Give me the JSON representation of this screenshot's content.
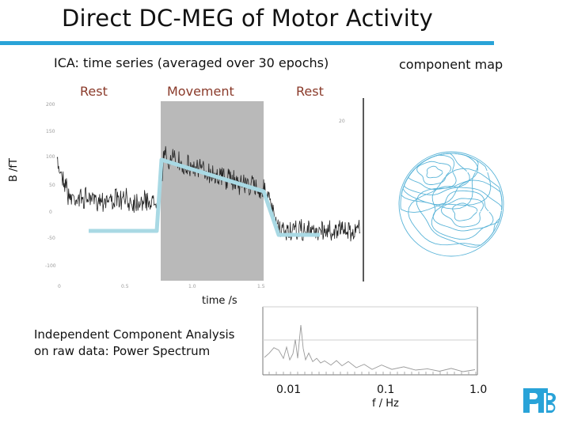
{
  "slide": {
    "title": "Direct DC-MEG of Motor Activity",
    "accent_color": "#29a3d8",
    "logo_text": "PTB"
  },
  "time_series": {
    "heading": "ICA: time series (averaged over 30 epochs)",
    "phases": [
      "Rest",
      "Movement",
      "Rest"
    ],
    "ylabel": "B /fT",
    "xlabel": "time /s",
    "trace_color": "#222222",
    "movement_shade": "#b9b9b9",
    "model_line_color": "#a9d9e4"
  },
  "component_map": {
    "heading": "component map",
    "contour_color": "#5ab4d8"
  },
  "power_spectrum": {
    "caption_line1": "Independent Component Analysis",
    "caption_line2": "on raw data: Power Spectrum",
    "x_ticks": [
      "0.01",
      "0.1",
      "1.0"
    ],
    "xlabel": "f / Hz"
  }
}
